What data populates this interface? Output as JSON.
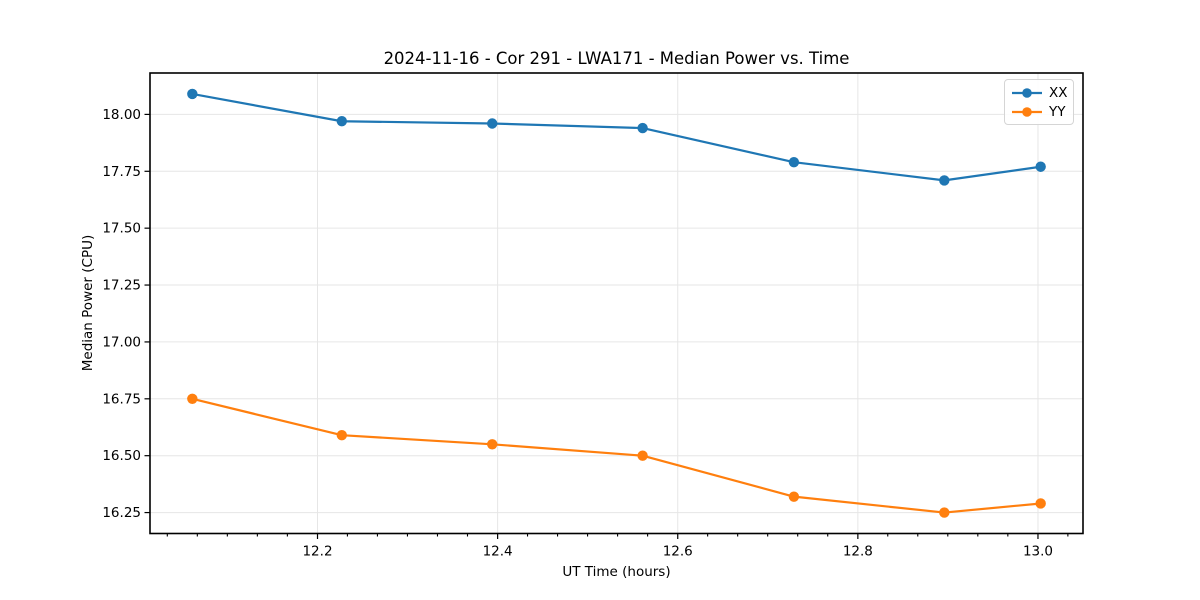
{
  "figure": {
    "background": "#ffffff"
  },
  "chart_data": {
    "type": "line",
    "title": "2024-11-16 - Cor 291 - LWA171 - Median Power vs. Time",
    "xlabel": "UT Time (hours)",
    "ylabel": "Median Power (CPU)",
    "x": [
      12.061,
      12.227,
      12.394,
      12.561,
      12.729,
      12.896,
      13.003
    ],
    "series": [
      {
        "name": "XX",
        "color": "#1f77b4",
        "values": [
          18.09,
          17.97,
          17.96,
          17.94,
          17.79,
          17.71,
          17.77
        ]
      },
      {
        "name": "YY",
        "color": "#ff7f0e",
        "values": [
          16.75,
          16.59,
          16.55,
          16.5,
          16.32,
          16.25,
          16.29
        ]
      }
    ],
    "xlim": [
      12.014,
      13.05
    ],
    "ylim": [
      16.158,
      18.182
    ],
    "xticks": {
      "values": [
        12.2,
        12.4,
        12.6,
        12.8,
        13.0
      ],
      "labels": [
        "12.2",
        "12.4",
        "12.6",
        "12.8",
        "13.0"
      ]
    },
    "yticks": {
      "values": [
        16.25,
        16.5,
        16.75,
        17.0,
        17.25,
        17.5,
        17.75,
        18.0
      ],
      "labels": [
        "16.25",
        "16.50",
        "16.75",
        "17.00",
        "17.25",
        "17.50",
        "17.75",
        "18.00"
      ]
    },
    "x_minor_step": 0.033333,
    "grid": true,
    "legend_position": "upper right",
    "style": {
      "grid_color": "#e6e6e6",
      "spine_color": "#000000",
      "line_width": 2.2,
      "marker_radius": 5.2
    }
  }
}
